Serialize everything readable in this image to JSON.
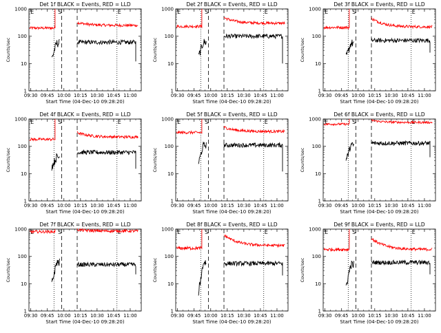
{
  "chart_data": {
    "type": "line",
    "ylabel": "Counts/sec",
    "xlabel": "Start Time (04-Dec-10 09:28:20)",
    "x_ticks": [
      "09:30",
      "09:45",
      "10:00",
      "10:15",
      "10:30",
      "10:45",
      "11:00"
    ],
    "y_ticks": [
      "1",
      "10",
      "100",
      "1000"
    ],
    "x_range": [
      "09:28:20",
      "11:10:00"
    ],
    "y_range": [
      1,
      1000
    ],
    "y_scale": "log",
    "colors": {
      "events": "#000000",
      "lld": "#ff0000"
    },
    "markers": [
      {
        "label": "E",
        "time": "09:29",
        "style": "none"
      },
      {
        "label": "S",
        "time": "09:54",
        "style": "none"
      },
      {
        "label": "E",
        "time": "10:48",
        "style": "none"
      }
    ],
    "vlines": [
      {
        "time": "09:51",
        "style": "dotted"
      },
      {
        "time": "09:58",
        "style": "dashed"
      },
      {
        "time": "10:12",
        "style": "dashed"
      },
      {
        "time": "10:48",
        "style": "dotted"
      }
    ],
    "panels": [
      {
        "title": "Det 1f BLACK = Events, RED = LLD",
        "series": [
          {
            "name": "LLD",
            "segments": [
              {
                "start": "09:29",
                "end": "09:52",
                "level": 200,
                "noise": 0.05,
                "spike_end": 1000
              },
              {
                "start": "10:12",
                "end": "11:07",
                "level": 250,
                "decay_from": 320,
                "noise": 0.05
              }
            ]
          },
          {
            "name": "Events",
            "segments": [
              {
                "start": "09:49",
                "end": "09:56",
                "level": 55,
                "ramp_from": 15,
                "noise": 0.15
              },
              {
                "start": "10:12",
                "end": "11:05",
                "level": 60,
                "noise": 0.08,
                "dip_end": 12
              }
            ]
          }
        ]
      },
      {
        "title": "Det 2f BLACK = Events, RED = LLD",
        "series": [
          {
            "name": "LLD",
            "segments": [
              {
                "start": "09:29",
                "end": "09:52",
                "level": 230,
                "noise": 0.05,
                "spike_end": 1000
              },
              {
                "start": "10:12",
                "end": "11:07",
                "level": 300,
                "decay_from": 480,
                "noise": 0.05
              }
            ]
          },
          {
            "name": "Events",
            "segments": [
              {
                "start": "09:49",
                "end": "09:56",
                "level": 60,
                "ramp_from": 18,
                "noise": 0.15
              },
              {
                "start": "10:12",
                "end": "11:05",
                "level": 100,
                "noise": 0.08,
                "dip_end": 10
              }
            ]
          }
        ]
      },
      {
        "title": "Det 3f BLACK = Events, RED = LLD",
        "series": [
          {
            "name": "LLD",
            "segments": [
              {
                "start": "09:29",
                "end": "09:52",
                "level": 210,
                "noise": 0.05,
                "spike_end": 1000
              },
              {
                "start": "10:12",
                "end": "11:07",
                "level": 220,
                "decay_from": 450,
                "noise": 0.05
              }
            ]
          },
          {
            "name": "Events",
            "segments": [
              {
                "start": "09:49",
                "end": "09:56",
                "level": 55,
                "ramp_from": 16,
                "noise": 0.15
              },
              {
                "start": "10:12",
                "end": "11:05",
                "level": 70,
                "noise": 0.08,
                "dip_end": 25
              }
            ]
          }
        ]
      },
      {
        "title": "Det 4f BLACK = Events, RED = LLD",
        "series": [
          {
            "name": "LLD",
            "segments": [
              {
                "start": "09:29",
                "end": "09:52",
                "level": 180,
                "noise": 0.05,
                "spike_end": 1000
              },
              {
                "start": "10:12",
                "end": "11:07",
                "level": 220,
                "decay_from": 320,
                "noise": 0.05
              }
            ]
          },
          {
            "name": "Events",
            "segments": [
              {
                "start": "09:49",
                "end": "09:56",
                "level": 40,
                "ramp_from": 18,
                "noise": 0.15
              },
              {
                "start": "10:12",
                "end": "11:05",
                "level": 60,
                "noise": 0.08,
                "dip_end": 15
              }
            ]
          }
        ]
      },
      {
        "title": "Det 5f BLACK = Events, RED = LLD",
        "series": [
          {
            "name": "LLD",
            "segments": [
              {
                "start": "09:29",
                "end": "09:52",
                "level": 320,
                "noise": 0.05,
                "spike_end": 1000
              },
              {
                "start": "10:12",
                "end": "11:07",
                "level": 350,
                "decay_from": 500,
                "noise": 0.05
              }
            ]
          },
          {
            "name": "Events",
            "segments": [
              {
                "start": "09:49",
                "end": "09:56",
                "level": 110,
                "ramp_from": 25,
                "noise": 0.12
              },
              {
                "start": "10:12",
                "end": "11:05",
                "level": 110,
                "noise": 0.08,
                "dip_end": 12
              }
            ]
          }
        ]
      },
      {
        "title": "Det 6f BLACK = Events, RED = LLD",
        "series": [
          {
            "name": "LLD",
            "segments": [
              {
                "start": "09:29",
                "end": "09:52",
                "level": 650,
                "noise": 0.04,
                "spike_end": 1000
              },
              {
                "start": "10:12",
                "end": "11:07",
                "level": 750,
                "decay_from": 900,
                "noise": 0.04
              }
            ]
          },
          {
            "name": "Events",
            "segments": [
              {
                "start": "09:49",
                "end": "09:56",
                "level": 110,
                "ramp_from": 30,
                "noise": 0.12
              },
              {
                "start": "10:12",
                "end": "11:05",
                "level": 130,
                "noise": 0.08,
                "dip_end": 40
              }
            ]
          }
        ]
      },
      {
        "title": "Det 7f BLACK = Events, RED = LLD",
        "series": [
          {
            "name": "LLD",
            "segments": [
              {
                "start": "09:29",
                "end": "09:52",
                "level": 800,
                "noise": 0.05,
                "spike_end": 1000
              },
              {
                "start": "10:12",
                "end": "11:07",
                "level": 850,
                "decay_from": 950,
                "noise": 0.05
              }
            ]
          },
          {
            "name": "Events",
            "segments": [
              {
                "start": "09:49",
                "end": "09:56",
                "level": 60,
                "ramp_from": 10,
                "noise": 0.15
              },
              {
                "start": "10:12",
                "end": "11:05",
                "level": 50,
                "noise": 0.08,
                "dip_end": 22
              }
            ]
          }
        ]
      },
      {
        "title": "Det 8f BLACK = Events, RED = LLD",
        "series": [
          {
            "name": "LLD",
            "segments": [
              {
                "start": "09:29",
                "end": "09:52",
                "level": 200,
                "noise": 0.06,
                "spike_end": 1000
              },
              {
                "start": "10:12",
                "end": "11:07",
                "level": 250,
                "decay_from": 600,
                "noise": 0.05
              }
            ]
          },
          {
            "name": "Events",
            "segments": [
              {
                "start": "09:49",
                "end": "09:56",
                "level": 60,
                "ramp_from": 5,
                "noise": 0.15
              },
              {
                "start": "10:12",
                "end": "11:05",
                "level": 55,
                "noise": 0.08,
                "dip_end": 20
              }
            ]
          }
        ]
      },
      {
        "title": "Det 9f BLACK = Events, RED = LLD",
        "series": [
          {
            "name": "LLD",
            "segments": [
              {
                "start": "09:29",
                "end": "09:52",
                "level": 180,
                "noise": 0.06,
                "spike_end": 1000
              },
              {
                "start": "10:12",
                "end": "11:07",
                "level": 180,
                "decay_from": 450,
                "noise": 0.05
              }
            ]
          },
          {
            "name": "Events",
            "segments": [
              {
                "start": "09:49",
                "end": "09:56",
                "level": 50,
                "ramp_from": 8,
                "noise": 0.15
              },
              {
                "start": "10:12",
                "end": "11:05",
                "level": 60,
                "noise": 0.08,
                "dip_end": 22
              }
            ]
          }
        ]
      }
    ]
  }
}
